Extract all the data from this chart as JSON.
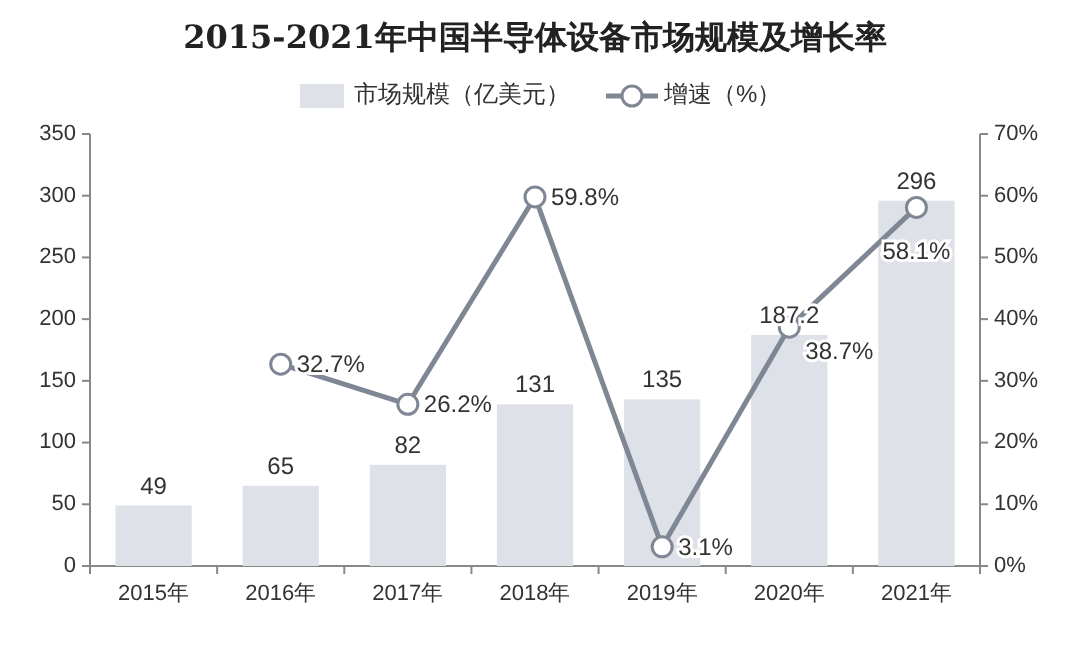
{
  "chart_data": {
    "type": "bar",
    "title": "2015-2021年中国半导体设备市场规模及增长率",
    "categories": [
      "2015年",
      "2016年",
      "2017年",
      "2018年",
      "2019年",
      "2020年",
      "2021年"
    ],
    "series": [
      {
        "name": "市场规模（亿美元）",
        "color": "#dfe1e8",
        "values": [
          49,
          65,
          82,
          131,
          135,
          187.2,
          296
        ],
        "value_labels": [
          "49",
          "65",
          "82",
          "131",
          "135",
          "187.2",
          "296"
        ]
      },
      {
        "name": "增速（%）",
        "type": "line",
        "axis": "y2",
        "color": "#7f8795",
        "marker": "circle",
        "values": [
          null,
          32.7,
          26.2,
          59.8,
          3.1,
          38.7,
          58.1
        ],
        "value_labels": [
          null,
          "32.7%",
          "26.2%",
          "59.8%",
          "3.1%",
          "38.7%",
          "58.1%"
        ]
      }
    ],
    "ylim": [
      0,
      350
    ],
    "yticks": [
      0,
      50,
      100,
      150,
      200,
      250,
      300,
      350
    ],
    "y2lim": [
      0,
      70
    ],
    "y2ticks": [
      {
        "value": 0,
        "label": "0%"
      },
      {
        "value": 10,
        "label": "10%"
      },
      {
        "value": 20,
        "label": "20%"
      },
      {
        "value": 30,
        "label": "30%"
      },
      {
        "value": 40,
        "label": "40%"
      },
      {
        "value": 50,
        "label": "50%"
      },
      {
        "value": 60,
        "label": "60%"
      },
      {
        "value": 70,
        "label": "70%"
      }
    ],
    "legend": "top",
    "grid": false
  }
}
